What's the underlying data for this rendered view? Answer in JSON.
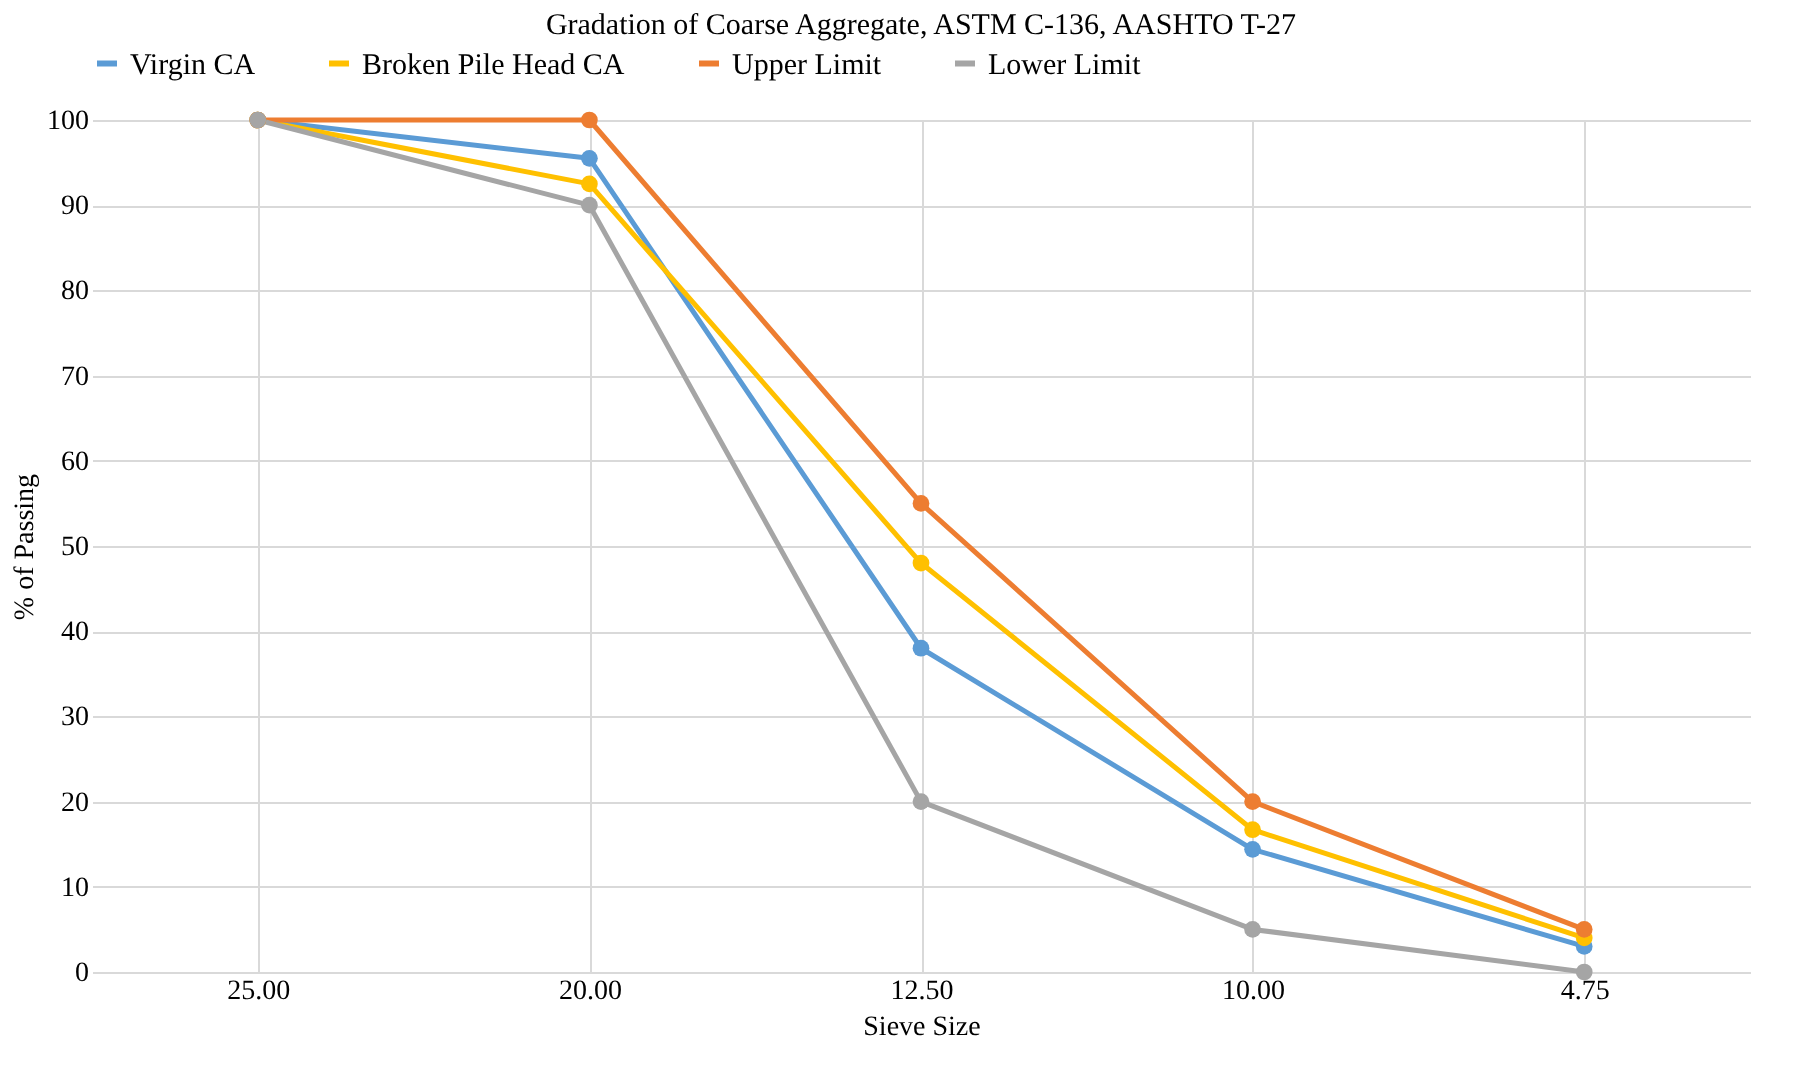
{
  "chart_data": {
    "type": "line",
    "title": "Gradation of Coarse Aggregate, ASTM C-136, AASHTO T-27",
    "xlabel": "Sieve Size",
    "ylabel": "% of Passing",
    "categories": [
      "25.00",
      "20.00",
      "12.50",
      "10.00",
      "4.75"
    ],
    "series": [
      {
        "name": "Virgin CA",
        "color": "#5b9bd5",
        "values": [
          100,
          95.5,
          38,
          14.4,
          3
        ]
      },
      {
        "name": "Broken Pile Head CA",
        "color": "#ffc000",
        "values": [
          100,
          92.5,
          48,
          16.7,
          4
        ]
      },
      {
        "name": "Upper Limit",
        "color": "#ed7d31",
        "values": [
          100,
          100,
          55,
          20,
          5
        ]
      },
      {
        "name": "Lower Limit",
        "color": "#a5a5a5",
        "values": [
          100,
          90,
          20,
          5,
          0
        ]
      }
    ],
    "ylim": [
      0,
      100
    ],
    "yticks": [
      0,
      10,
      20,
      30,
      40,
      50,
      60,
      70,
      80,
      90,
      100
    ],
    "grid": true,
    "legend": "top",
    "marker": "circle",
    "line_style": "solid"
  }
}
